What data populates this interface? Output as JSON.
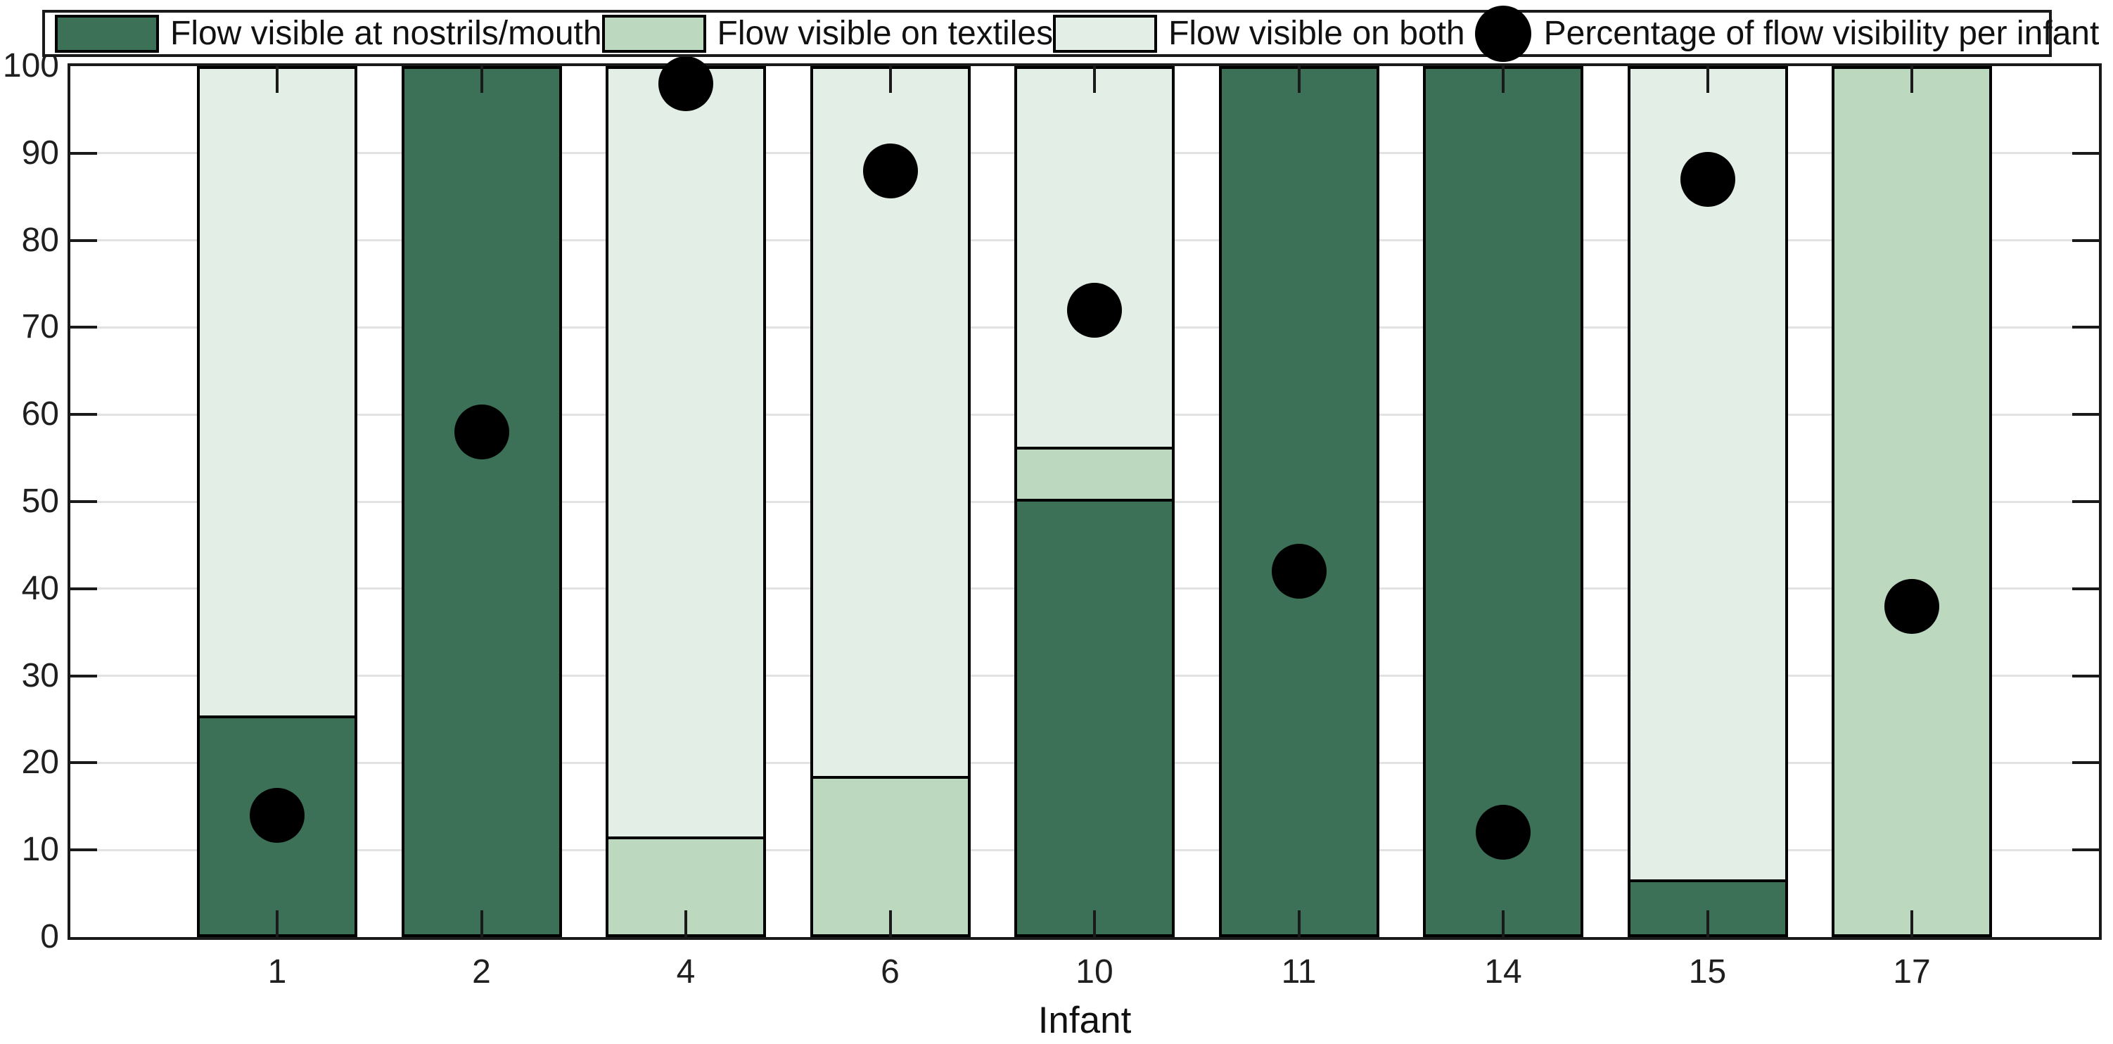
{
  "chart_data": {
    "type": "bar",
    "subtype": "stacked-bar-with-scatter-overlay",
    "categories": [
      "1",
      "2",
      "4",
      "6",
      "10",
      "11",
      "14",
      "15",
      "17"
    ],
    "series": [
      {
        "name": "Flow visible at nostrils/mouth",
        "color": "#3c7057",
        "values": [
          25,
          100,
          0,
          0,
          50,
          100,
          100,
          6,
          0
        ]
      },
      {
        "name": "Flow visible on textiles",
        "color": "#bcd9bf",
        "values": [
          0,
          0,
          11,
          18,
          6,
          0,
          0,
          0,
          100
        ]
      },
      {
        "name": "Flow visible on both",
        "color": "#e3eee6",
        "values": [
          75,
          0,
          89,
          82,
          44,
          0,
          0,
          94,
          0
        ]
      }
    ],
    "scatter": {
      "name": "Percentage of flow visibility per infant",
      "color": "#000000",
      "values": [
        14,
        58,
        98,
        88,
        72,
        42,
        12,
        87,
        38
      ]
    },
    "title": "",
    "xlabel": "Infant",
    "ylabel": "",
    "ylim": [
      0,
      100
    ],
    "yticks": [
      0,
      10,
      20,
      30,
      40,
      50,
      60,
      70,
      80,
      90,
      100
    ],
    "grid": "horizontal",
    "gridline_color": "#e2e2e2",
    "legend_position": "top-horizontal",
    "bar_edge_color": "#000000",
    "axis_color": "#1a1a1a"
  },
  "legend": {
    "items": [
      {
        "label": "Flow visible at nostrils/mouth",
        "marker": "swatch",
        "color": "#3c7057"
      },
      {
        "label": "Flow visible on textiles",
        "marker": "swatch",
        "color": "#bcd9bf"
      },
      {
        "label": "Flow visible on both",
        "marker": "swatch",
        "color": "#e3eee6"
      },
      {
        "label": "Percentage of flow visibility per infant",
        "marker": "circle",
        "color": "#000000"
      }
    ]
  }
}
